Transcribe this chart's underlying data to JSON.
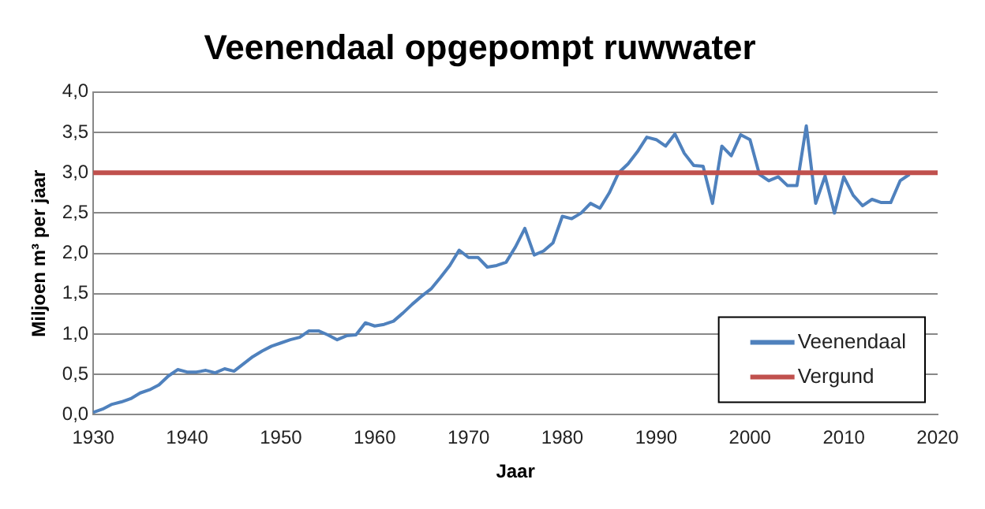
{
  "chart_data": {
    "type": "line",
    "title": "Veenendaal opgepompt ruwwater",
    "xlabel": "Jaar",
    "ylabel": "Miljoen m³ per jaar",
    "x": [
      1930,
      1931,
      1932,
      1933,
      1934,
      1935,
      1936,
      1937,
      1938,
      1939,
      1940,
      1941,
      1942,
      1943,
      1944,
      1945,
      1946,
      1947,
      1948,
      1949,
      1950,
      1951,
      1952,
      1953,
      1954,
      1955,
      1956,
      1957,
      1958,
      1959,
      1960,
      1961,
      1962,
      1963,
      1964,
      1965,
      1966,
      1967,
      1968,
      1969,
      1970,
      1971,
      1972,
      1973,
      1974,
      1975,
      1976,
      1977,
      1978,
      1979,
      1980,
      1981,
      1982,
      1983,
      1984,
      1985,
      1986,
      1987,
      1988,
      1989,
      1990,
      1991,
      1992,
      1993,
      1994,
      1995,
      1996,
      1997,
      1998,
      1999,
      2000,
      2001,
      2002,
      2003,
      2004,
      2005,
      2006,
      2007,
      2008,
      2009,
      2010,
      2011,
      2012,
      2013,
      2014,
      2015,
      2016,
      2017
    ],
    "series": [
      {
        "name": "Veenendaal",
        "color": "#4f81bd",
        "values": [
          0.03,
          0.07,
          0.13,
          0.16,
          0.2,
          0.27,
          0.31,
          0.37,
          0.48,
          0.56,
          0.53,
          0.53,
          0.55,
          0.52,
          0.57,
          0.54,
          0.63,
          0.72,
          0.79,
          0.85,
          0.89,
          0.93,
          0.96,
          1.04,
          1.04,
          0.99,
          0.93,
          0.98,
          0.99,
          1.14,
          1.1,
          1.12,
          1.16,
          1.26,
          1.37,
          1.47,
          1.56,
          1.7,
          1.85,
          2.04,
          1.95,
          1.95,
          1.83,
          1.85,
          1.89,
          2.08,
          2.31,
          1.98,
          2.03,
          2.13,
          2.46,
          2.43,
          2.5,
          2.62,
          2.56,
          2.75,
          3.0,
          3.11,
          3.26,
          3.44,
          3.41,
          3.33,
          3.48,
          3.24,
          3.09,
          3.08,
          2.62,
          3.33,
          3.21,
          3.47,
          3.41,
          2.98,
          2.9,
          2.95,
          2.84,
          2.84,
          3.58,
          2.62,
          2.96,
          2.5,
          2.95,
          2.72,
          2.59,
          2.67,
          2.63,
          2.63,
          2.9,
          2.98
        ]
      }
    ],
    "ref_lines": [
      {
        "axis": "y",
        "value": 3.0,
        "label": "Vergund",
        "color": "#c0504d"
      }
    ],
    "xlim": [
      1930,
      2020
    ],
    "xticks": [
      1930,
      1940,
      1950,
      1960,
      1970,
      1980,
      1990,
      2000,
      2010,
      2020
    ],
    "ylim": [
      0,
      4
    ],
    "yticks": [
      {
        "value": 0,
        "label": "0,0"
      },
      {
        "value": 0.5,
        "label": "0,5"
      },
      {
        "value": 1,
        "label": "1,0"
      },
      {
        "value": 1.5,
        "label": "1,5"
      },
      {
        "value": 2,
        "label": "2,0"
      },
      {
        "value": 2.5,
        "label": "2,5"
      },
      {
        "value": 3,
        "label": "3,0"
      },
      {
        "value": 3.5,
        "label": "3,5"
      },
      {
        "value": 4,
        "label": "4,0"
      }
    ],
    "grid": "y",
    "legend": "bottom right",
    "marker": "none",
    "line_style": "solid"
  }
}
